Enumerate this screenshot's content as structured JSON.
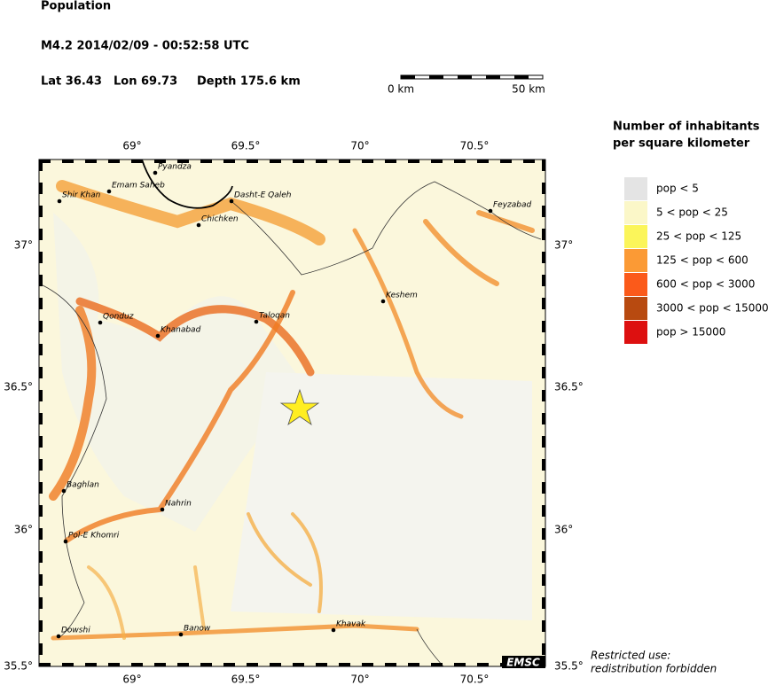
{
  "header": {
    "title": "Population",
    "event": "M4.2  2014/02/09 - 00:52:58 UTC",
    "lat": "Lat 36.43",
    "lon": "Lon  69.73",
    "depth": "Depth 175.6 km"
  },
  "scale": {
    "start": "0 km",
    "end": "50 km"
  },
  "legend": {
    "title_1": "Number of inhabitants",
    "title_2": "per square kilometer",
    "entries": [
      "pop < 5",
      "5 < pop < 25",
      "25 < pop < 125",
      "125 < pop < 600",
      "600 < pop < 3000",
      "3000 < pop < 15000",
      "pop > 15000"
    ]
  },
  "map": {
    "lon_ticks": [
      "69°",
      "69.5°",
      "70°",
      "70.5°"
    ],
    "lat_ticks": [
      "37°",
      "36.5°",
      "36°",
      "35.5°"
    ],
    "cities": [
      "Pyandza",
      "Shir Khan",
      "Emam Saheb",
      "Dasht-E Qaleh",
      "Chichken",
      "Feyzabad",
      "Keshem",
      "Qonduz",
      "Taloqan",
      "Khanabad",
      "Baghlan",
      "Nahrin",
      "Pol-E Khomri",
      "Dowshi",
      "Banow",
      "Khavak"
    ],
    "logo": "EMSC"
  },
  "note": {
    "line_1": "Restricted use:",
    "line_2": "redistribution forbidden"
  }
}
